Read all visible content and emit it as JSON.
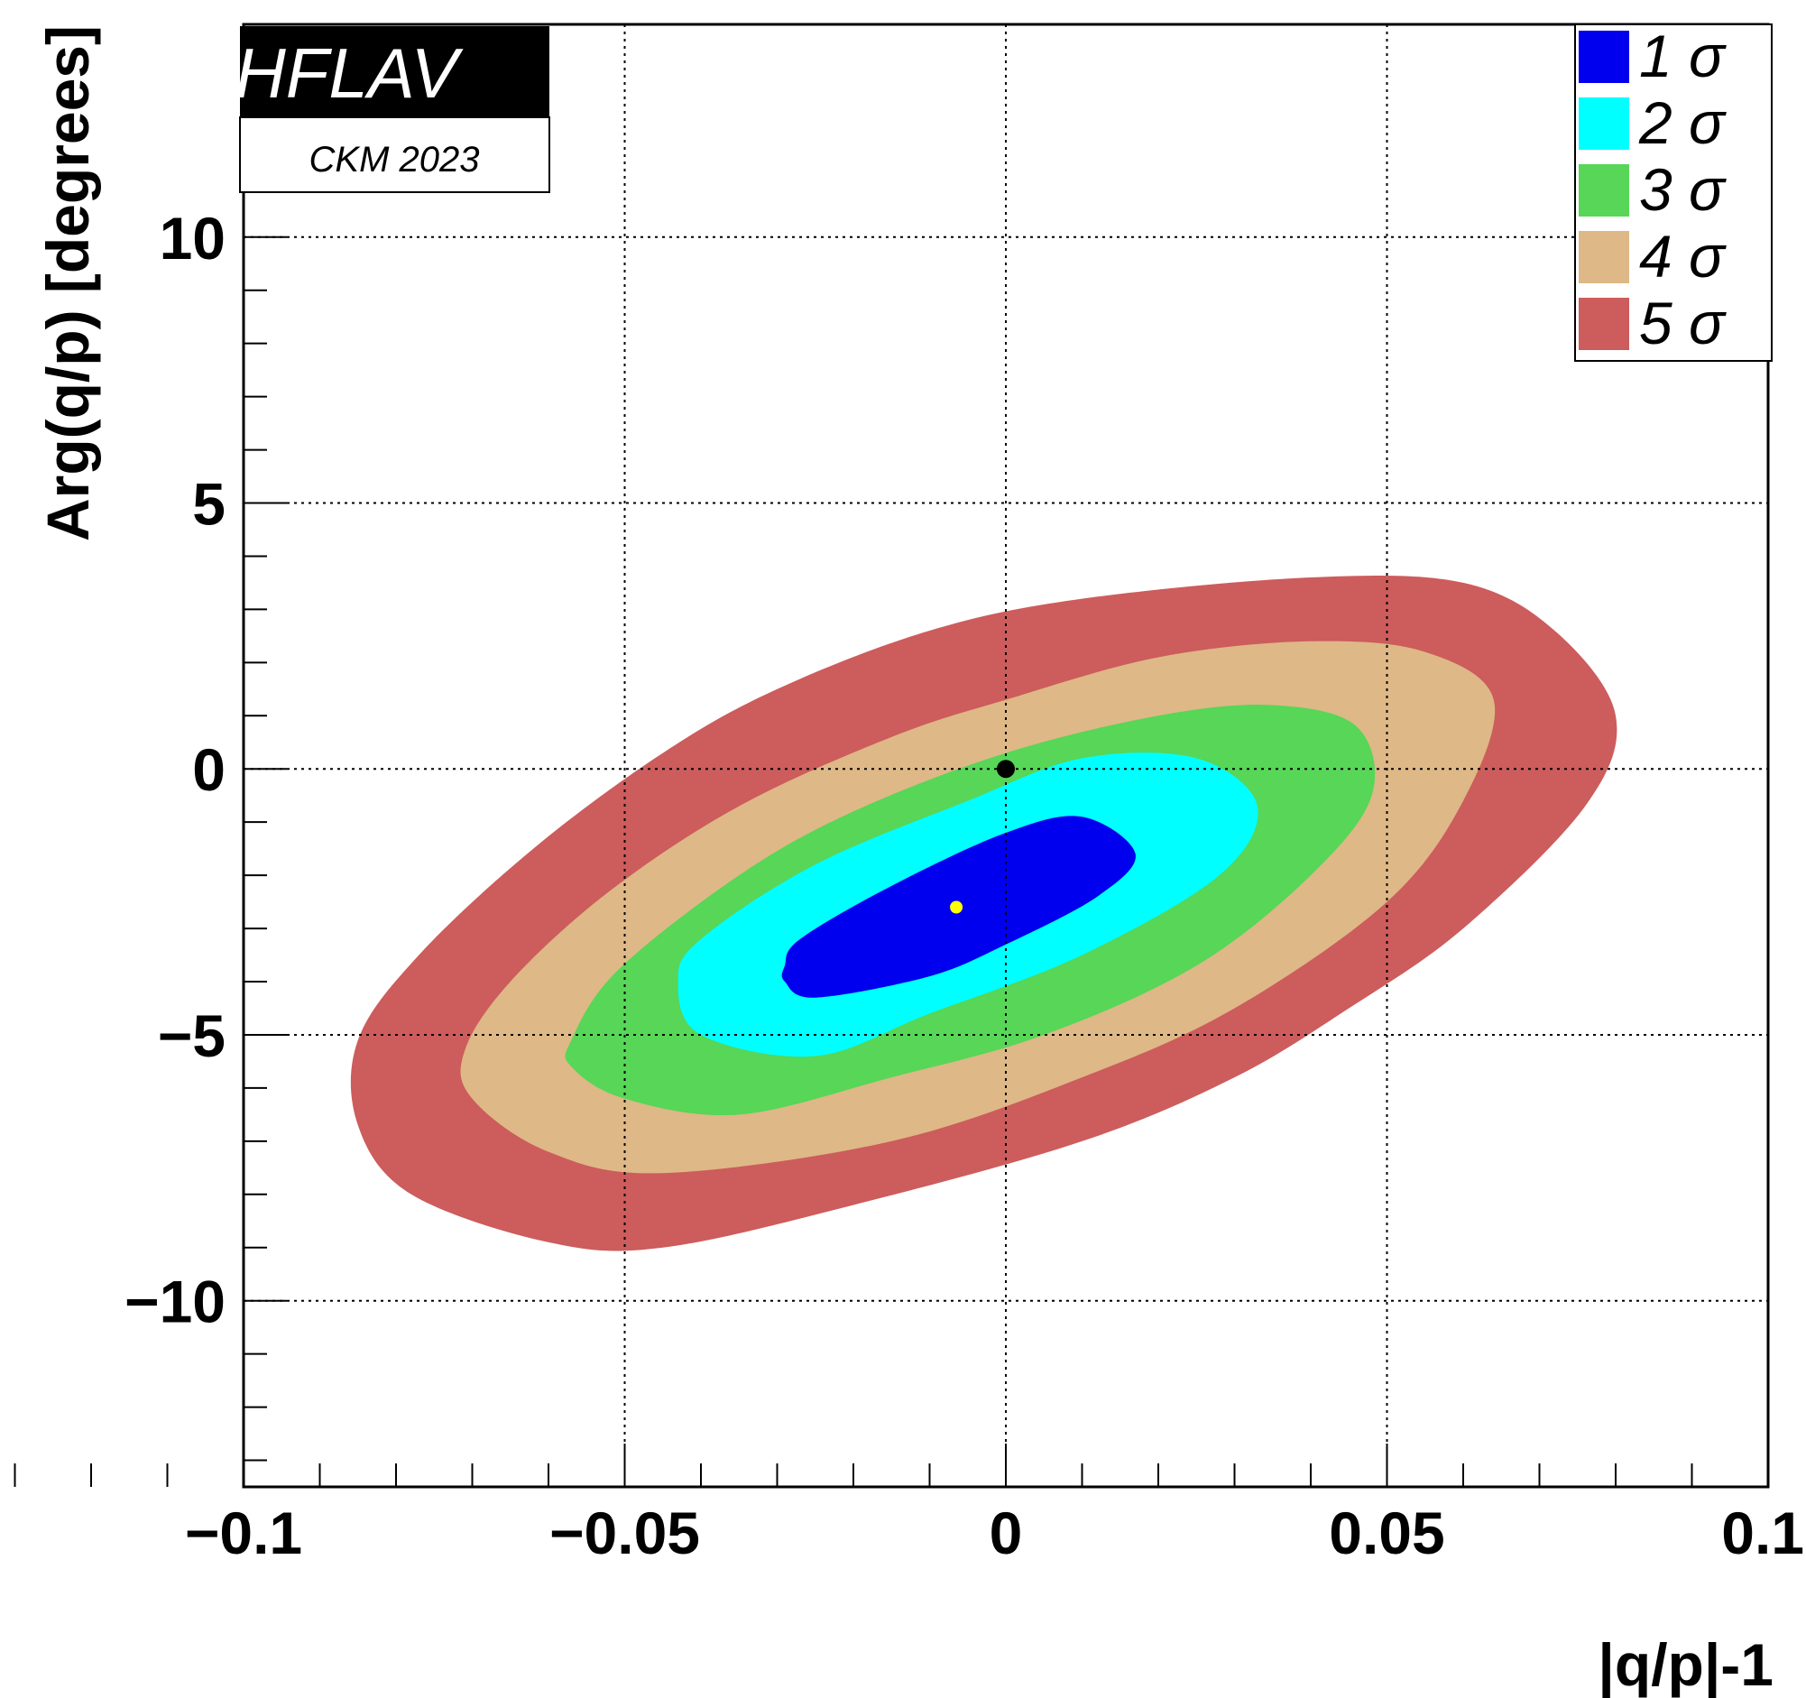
{
  "chart_data": {
    "type": "contour",
    "xlabel": "|q/p|-1",
    "ylabel": "Arg(q/p) [degrees]",
    "xlim": [
      -0.1,
      0.1
    ],
    "ylim": [
      -13.5,
      14
    ],
    "x_ticks": [
      -0.1,
      -0.05,
      0,
      0.05,
      0.1
    ],
    "x_tick_labels": [
      "−0.1",
      "−0.05",
      "0",
      "0.05",
      "0.1"
    ],
    "y_ticks": [
      -10,
      -5,
      0,
      5,
      10
    ],
    "y_tick_labels": [
      "−10",
      "−5",
      "0",
      "5",
      "10"
    ],
    "grid": true,
    "legend_position": "top-right",
    "contour_center": [
      -0.0065,
      -2.6
    ],
    "contours": [
      {
        "name": "5 σ",
        "color": "#cd5c5c",
        "points": [
          [
            -0.085,
            -5.1
          ],
          [
            -0.077,
            -3.5
          ],
          [
            -0.062,
            -1.5
          ],
          [
            -0.045,
            0.3
          ],
          [
            -0.03,
            1.5
          ],
          [
            -0.01,
            2.6
          ],
          [
            0.01,
            3.2
          ],
          [
            0.04,
            3.6
          ],
          [
            0.06,
            3.5
          ],
          [
            0.072,
            2.6
          ],
          [
            0.08,
            1.0
          ],
          [
            0.076,
            -0.7
          ],
          [
            0.06,
            -3.0
          ],
          [
            0.045,
            -4.5
          ],
          [
            0.03,
            -5.8
          ],
          [
            0.01,
            -7.0
          ],
          [
            -0.02,
            -8.2
          ],
          [
            -0.045,
            -9.0
          ],
          [
            -0.06,
            -8.9
          ],
          [
            -0.078,
            -8.0
          ],
          [
            -0.085,
            -6.7
          ]
        ]
      },
      {
        "name": "4 σ",
        "color": "#deb887",
        "points": [
          [
            -0.071,
            -5.3
          ],
          [
            -0.065,
            -4.0
          ],
          [
            -0.052,
            -2.3
          ],
          [
            -0.035,
            -0.7
          ],
          [
            -0.015,
            0.6
          ],
          [
            0.0,
            1.3
          ],
          [
            0.02,
            2.1
          ],
          [
            0.04,
            2.4
          ],
          [
            0.055,
            2.2
          ],
          [
            0.064,
            1.3
          ],
          [
            0.06,
            -0.6
          ],
          [
            0.05,
            -2.5
          ],
          [
            0.03,
            -4.5
          ],
          [
            0.01,
            -5.8
          ],
          [
            -0.015,
            -7.0
          ],
          [
            -0.045,
            -7.6
          ],
          [
            -0.06,
            -7.2
          ],
          [
            -0.07,
            -6.2
          ]
        ]
      },
      {
        "name": "3 σ",
        "color": "#57d657",
        "points": [
          [
            -0.057,
            -5.1
          ],
          [
            -0.051,
            -3.8
          ],
          [
            -0.035,
            -2.0
          ],
          [
            -0.02,
            -0.8
          ],
          [
            0.0,
            0.3
          ],
          [
            0.02,
            1.0
          ],
          [
            0.035,
            1.2
          ],
          [
            0.046,
            0.8
          ],
          [
            0.048,
            -0.5
          ],
          [
            0.04,
            -2.0
          ],
          [
            0.025,
            -3.7
          ],
          [
            0.005,
            -5.0
          ],
          [
            -0.015,
            -5.8
          ],
          [
            -0.035,
            -6.5
          ],
          [
            -0.05,
            -6.2
          ],
          [
            -0.057,
            -5.6
          ]
        ]
      },
      {
        "name": "2 σ",
        "color": "#00ffff",
        "points": [
          [
            -0.043,
            -4.0
          ],
          [
            -0.04,
            -3.2
          ],
          [
            -0.025,
            -1.8
          ],
          [
            -0.005,
            -0.6
          ],
          [
            0.01,
            0.2
          ],
          [
            0.025,
            0.2
          ],
          [
            0.033,
            -0.7
          ],
          [
            0.028,
            -2.0
          ],
          [
            0.01,
            -3.5
          ],
          [
            -0.01,
            -4.6
          ],
          [
            -0.025,
            -5.4
          ],
          [
            -0.04,
            -5.0
          ]
        ]
      },
      {
        "name": "1 σ",
        "color": "#0000ee",
        "points": [
          [
            -0.029,
            -3.7
          ],
          [
            -0.027,
            -3.2
          ],
          [
            -0.015,
            -2.2
          ],
          [
            0.0,
            -1.2
          ],
          [
            0.01,
            -0.9
          ],
          [
            0.017,
            -1.6
          ],
          [
            0.012,
            -2.4
          ],
          [
            0.0,
            -3.3
          ],
          [
            -0.01,
            -3.9
          ],
          [
            -0.025,
            -4.3
          ],
          [
            -0.029,
            -4.0
          ]
        ]
      }
    ],
    "reference_point": {
      "x": 0,
      "y": 0,
      "color": "#000000"
    },
    "best_fit_point": {
      "x": -0.0065,
      "y": -2.6,
      "color": "#ffff00"
    },
    "legend": [
      {
        "label": "1 σ",
        "color": "#0000ee"
      },
      {
        "label": "2 σ",
        "color": "#00ffff"
      },
      {
        "label": "3 σ",
        "color": "#57d657"
      },
      {
        "label": "4 σ",
        "color": "#deb887"
      },
      {
        "label": "5 σ",
        "color": "#cd5c5c"
      }
    ]
  },
  "logo": {
    "title": "HFLAV",
    "subtitle": "CKM 2023"
  }
}
